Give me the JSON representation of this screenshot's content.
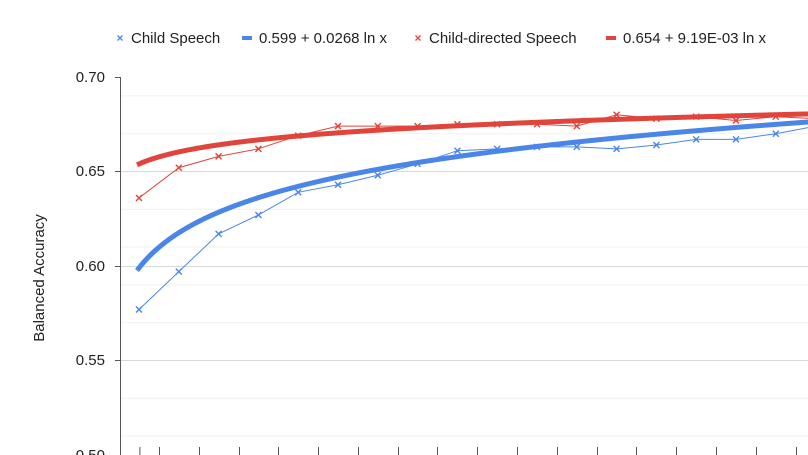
{
  "chart_data": {
    "type": "line",
    "ylabel": "Balanced Accuracy",
    "xlabel": "",
    "ylim": [
      0.5,
      0.7
    ],
    "y_ticks": [
      "0.70",
      "0.65",
      "0.60",
      "0.55",
      "0.50"
    ],
    "grid": true,
    "legend_position": "top",
    "series": [
      {
        "name": "Child Speech",
        "kind": "markers",
        "color": "#4a86e8",
        "x": [
          1,
          2,
          3,
          4,
          5,
          6,
          7,
          8,
          9,
          10,
          11,
          12,
          13,
          14,
          15,
          16,
          17,
          18
        ],
        "y": [
          0.577,
          0.597,
          0.617,
          0.627,
          0.639,
          0.643,
          0.648,
          0.654,
          0.661,
          0.662,
          0.663,
          0.663,
          0.662,
          0.664,
          0.667,
          0.667,
          0.67,
          0.674
        ]
      },
      {
        "name": "0.599 + 0.0268 ln x",
        "kind": "trendline",
        "color": "#4a86e8",
        "intercept": 0.599,
        "slope": 0.0268
      },
      {
        "name": "Child-directed Speech",
        "kind": "markers",
        "color": "#e0443a",
        "x": [
          1,
          2,
          3,
          4,
          5,
          6,
          7,
          8,
          9,
          10,
          11,
          12,
          13,
          14,
          15,
          16,
          17,
          18
        ],
        "y": [
          0.636,
          0.652,
          0.658,
          0.662,
          0.669,
          0.674,
          0.674,
          0.674,
          0.675,
          0.675,
          0.675,
          0.674,
          0.68,
          0.678,
          0.679,
          0.677,
          0.679,
          0.678
        ]
      },
      {
        "name": "0.654 + 9.19E-03 ln x",
        "kind": "trendline",
        "color": "#e0443a",
        "intercept": 0.654,
        "slope": 0.00919
      }
    ]
  }
}
